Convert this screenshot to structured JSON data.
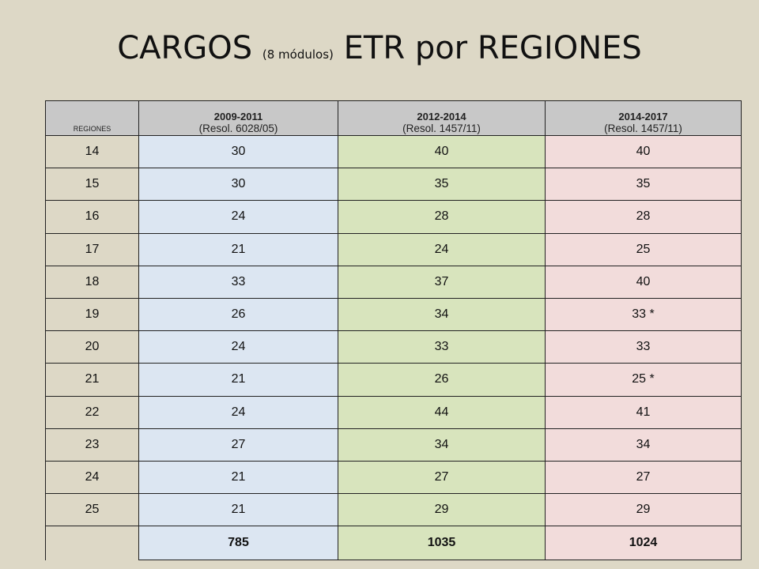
{
  "title": {
    "main_part1": "CARGOS ",
    "sub": "(8 módulos)",
    "main_part2": " ETR por REGIONES"
  },
  "table": {
    "columns": [
      {
        "label": "REGIONES"
      },
      {
        "years": "2009-2011",
        "resol": "(Resol. 6028/05)"
      },
      {
        "years": "2012-2014",
        "resol": "(Resol. 1457/11)"
      },
      {
        "years": "2014-2017",
        "resol": "(Resol. 1457/11)"
      }
    ],
    "rows": [
      [
        "14",
        "30",
        "40",
        "40"
      ],
      [
        "15",
        "30",
        "35",
        "35"
      ],
      [
        "16",
        "24",
        "28",
        "28"
      ],
      [
        "17",
        "21",
        "24",
        "25"
      ],
      [
        "18",
        "33",
        "37",
        "40"
      ],
      [
        "19",
        "26",
        "34",
        "33 *"
      ],
      [
        "20",
        "24",
        "33",
        "33"
      ],
      [
        "21",
        "21",
        "26",
        "25 *"
      ],
      [
        "22",
        "24",
        "44",
        "41"
      ],
      [
        "23",
        "27",
        "34",
        "34"
      ],
      [
        "24",
        "21",
        "27",
        "27"
      ],
      [
        "25",
        "21",
        "29",
        "29"
      ]
    ],
    "totals": [
      "",
      "785",
      "1035",
      "1024"
    ]
  },
  "colors": {
    "background": "#ddd8c6",
    "header": "#c8c8c8",
    "col_2009": "#dce6f2",
    "col_2012": "#d8e4bd",
    "col_2014": "#f2dcdb"
  }
}
